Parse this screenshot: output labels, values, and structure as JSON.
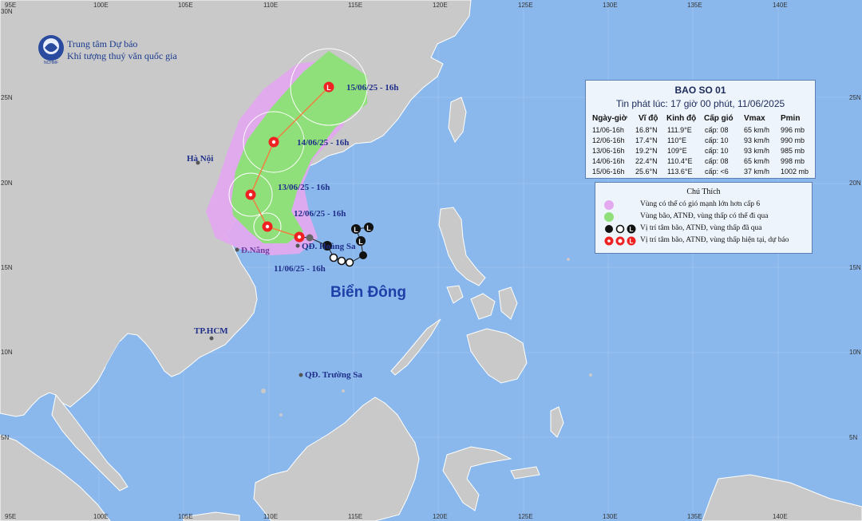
{
  "header": {
    "line1": "Trung tâm Dự báo",
    "line2": "Khí tượng thuỷ văn quốc gia",
    "logo_text": "NCHMF"
  },
  "axes": {
    "top_lon_labels": [
      "95E",
      "100E",
      "105E",
      "110E",
      "115E",
      "120E",
      "125E",
      "130E",
      "135E",
      "140E"
    ],
    "bottom_lon_labels": [
      "95E",
      "100E",
      "105E",
      "110E",
      "115E",
      "120E",
      "125E",
      "130E",
      "135E",
      "140E"
    ],
    "left_lat_labels": [
      "30N",
      "25N",
      "20N",
      "15N",
      "10N",
      "5N"
    ],
    "right_lat_labels": [
      "25N",
      "20N",
      "15N",
      "10N",
      "5N"
    ]
  },
  "places": {
    "hanoi": "Hà Nội",
    "danang": "Đ.Nẵng",
    "hoangsa": "QĐ. Hoàng Sa",
    "hcm": "TP.HCM",
    "truongsa": "QĐ. Trường Sa",
    "sea": "Biển Đông"
  },
  "track_labels": {
    "d15": "15/06/25 - 16h",
    "d14": "14/06/25 - 16h",
    "d13": "13/06/25 - 16h",
    "d12": "12/06/25 - 16h",
    "d11": "11/06/25 - 16h"
  },
  "info": {
    "title": "BAO SO 01",
    "issued": "Tin phát lúc: 17 giờ 00 phút, 11/06/2025",
    "headers": [
      "Ngày-giờ",
      "Vĩ độ",
      "Kinh độ",
      "Cấp gió",
      "Vmax",
      "Pmin"
    ],
    "rows": [
      [
        "11/06-16h",
        "16.8°N",
        "111.9°E",
        "cấp: 08",
        "65 km/h",
        "996 mb"
      ],
      [
        "12/06-16h",
        "17.4°N",
        "110°E",
        "cấp: 10",
        "93 km/h",
        "990 mb"
      ],
      [
        "13/06-16h",
        "19.2°N",
        "109°E",
        "cấp: 10",
        "93 km/h",
        "985 mb"
      ],
      [
        "14/06-16h",
        "22.4°N",
        "110.4°E",
        "cấp: 08",
        "65 km/h",
        "998 mb"
      ],
      [
        "15/06-16h",
        "25.6°N",
        "113.6°E",
        "cấp: <6",
        "37 km/h",
        "1002 mb"
      ]
    ]
  },
  "legend": {
    "title": "Chú Thích",
    "items": [
      "Vùng có thể có gió mạnh lớn hơn cấp 6",
      "Vùng bão, ATNĐ, vùng thấp có thể đi qua",
      "Vị trí tâm bão, ATNĐ, vùng thấp đã qua",
      "Vị trí tâm bão, ATNĐ, vùng thấp hiện tại, dự báo"
    ],
    "colors": {
      "wind_zone": "#e3a9ef",
      "track_zone": "#8fe07a",
      "past": "#111111",
      "forecast": "#ee2222"
    }
  },
  "colors": {
    "sea": "#8ab8ec",
    "land": "#c9c9c9",
    "track_line": "#f08040",
    "title_text": "#1a3a8f"
  }
}
